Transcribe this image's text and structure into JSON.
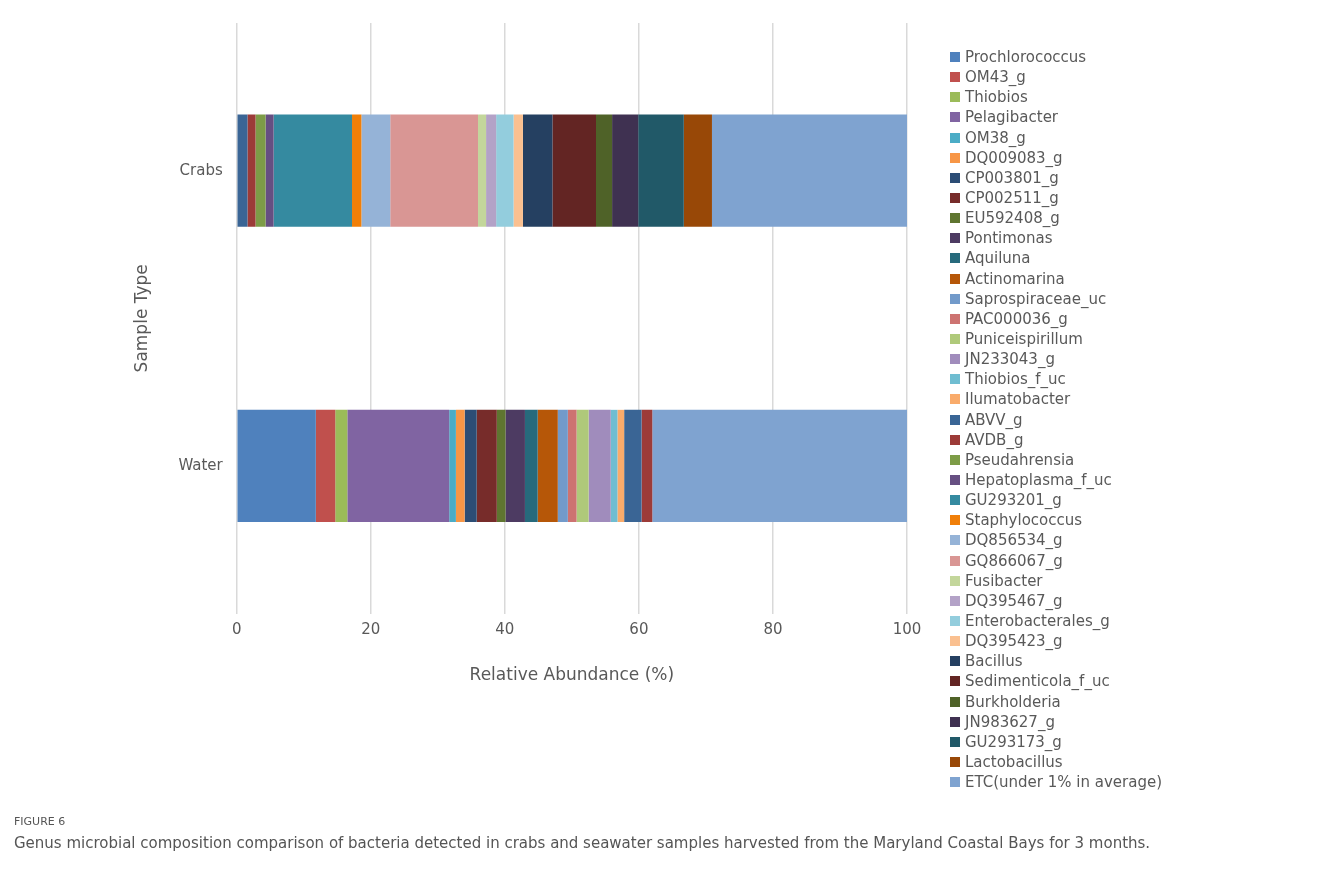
{
  "chart_data": {
    "type": "bar",
    "orientation": "horizontal",
    "stacked": true,
    "categories": [
      "Crabs",
      "Water"
    ],
    "xlabel": "Relative Abundance (%)",
    "ylabel": "Sample Type",
    "xlim": [
      0,
      100
    ],
    "xticks": [
      0,
      20,
      40,
      60,
      80,
      100
    ],
    "grid": "x",
    "legend": "right",
    "annotations": [
      "FIGURE 6",
      "Genus microbial composition comparison of bacteria detected in crabs and seawater samples harvested from the Maryland Coastal Bays for 3 months."
    ],
    "series": [
      {
        "name": "Prochlorococcus",
        "color": "#4f81bd",
        "values": [
          null,
          11.8
        ]
      },
      {
        "name": "OM43_g",
        "color": "#c0504d",
        "values": [
          null,
          2.9
        ]
      },
      {
        "name": "Thiobios",
        "color": "#9bbb59",
        "values": [
          null,
          1.8
        ]
      },
      {
        "name": "Pelagibacter",
        "color": "#8064a2",
        "values": [
          null,
          15.2
        ]
      },
      {
        "name": "OM38_g",
        "color": "#4bacc6",
        "values": [
          null,
          1.0
        ]
      },
      {
        "name": "DQ009083_g",
        "color": "#f79646",
        "values": [
          null,
          1.3
        ]
      },
      {
        "name": "CP003801_g",
        "color": "#2c4d75",
        "values": [
          null,
          1.8
        ]
      },
      {
        "name": "CP002511_g",
        "color": "#772c2a",
        "values": [
          null,
          3.0
        ]
      },
      {
        "name": "EU592408_g",
        "color": "#5f7530",
        "values": [
          null,
          1.3
        ]
      },
      {
        "name": "Pontimonas",
        "color": "#4d3b62",
        "values": [
          null,
          2.9
        ]
      },
      {
        "name": "Aquiluna",
        "color": "#276a7c",
        "values": [
          null,
          1.9
        ]
      },
      {
        "name": "Actinomarina",
        "color": "#b65708",
        "values": [
          null,
          3.0
        ]
      },
      {
        "name": "Saprospiraceae_uc",
        "color": "#729aca",
        "values": [
          null,
          1.5
        ]
      },
      {
        "name": "PAC000036_g",
        "color": "#cd7371",
        "values": [
          null,
          1.3
        ]
      },
      {
        "name": "Puniceispirillum",
        "color": "#afc97a",
        "values": [
          null,
          1.8
        ]
      },
      {
        "name": "JN233043_g",
        "color": "#a08cbc",
        "values": [
          null,
          3.3
        ]
      },
      {
        "name": "Thiobios_f_uc",
        "color": "#6fbdd1",
        "values": [
          null,
          1.0
        ]
      },
      {
        "name": "Ilumatobacter",
        "color": "#f9ab6b",
        "values": [
          null,
          1.0
        ]
      },
      {
        "name": "ABVV_g",
        "color": "#3a6595",
        "values": [
          1.6,
          2.6
        ]
      },
      {
        "name": "AVDB_g",
        "color": "#9c3b38",
        "values": [
          1.2,
          1.6
        ]
      },
      {
        "name": "Pseudahrensia",
        "color": "#7d9c47",
        "values": [
          1.5,
          null
        ]
      },
      {
        "name": "Hepatoplasma_f_uc",
        "color": "#664f82",
        "values": [
          1.2,
          null
        ]
      },
      {
        "name": "GU293201_g",
        "color": "#358aa0",
        "values": [
          11.7,
          null
        ]
      },
      {
        "name": "Staphylococcus",
        "color": "#f07f09",
        "values": [
          1.4,
          null
        ]
      },
      {
        "name": "DQ856534_g",
        "color": "#95b3d7",
        "values": [
          4.3,
          null
        ]
      },
      {
        "name": "GQ866067_g",
        "color": "#d99694",
        "values": [
          13.1,
          null
        ]
      },
      {
        "name": "Fusibacter",
        "color": "#c3d69b",
        "values": [
          1.2,
          null
        ]
      },
      {
        "name": "DQ395467_g",
        "color": "#b3a2c7",
        "values": [
          1.5,
          null
        ]
      },
      {
        "name": "Enterobacterales_g",
        "color": "#93cddd",
        "values": [
          2.6,
          null
        ]
      },
      {
        "name": "DQ395423_g",
        "color": "#fac090",
        "values": [
          1.4,
          null
        ]
      },
      {
        "name": "Bacillus",
        "color": "#254061",
        "values": [
          4.4,
          null
        ]
      },
      {
        "name": "Sedimenticola_f_uc",
        "color": "#632523",
        "values": [
          6.5,
          null
        ]
      },
      {
        "name": "Burkholderia",
        "color": "#4f6228",
        "values": [
          2.4,
          null
        ]
      },
      {
        "name": "JN983627_g",
        "color": "#3f3151",
        "values": [
          3.9,
          null
        ]
      },
      {
        "name": "GU293173_g",
        "color": "#215968",
        "values": [
          6.8,
          null
        ]
      },
      {
        "name": "Lactobacillus",
        "color": "#984807",
        "values": [
          4.2,
          null
        ]
      },
      {
        "name": "ETC(under 1% in average)",
        "color": "#7fa3d0",
        "values": [
          29.1,
          38.0
        ]
      }
    ]
  }
}
